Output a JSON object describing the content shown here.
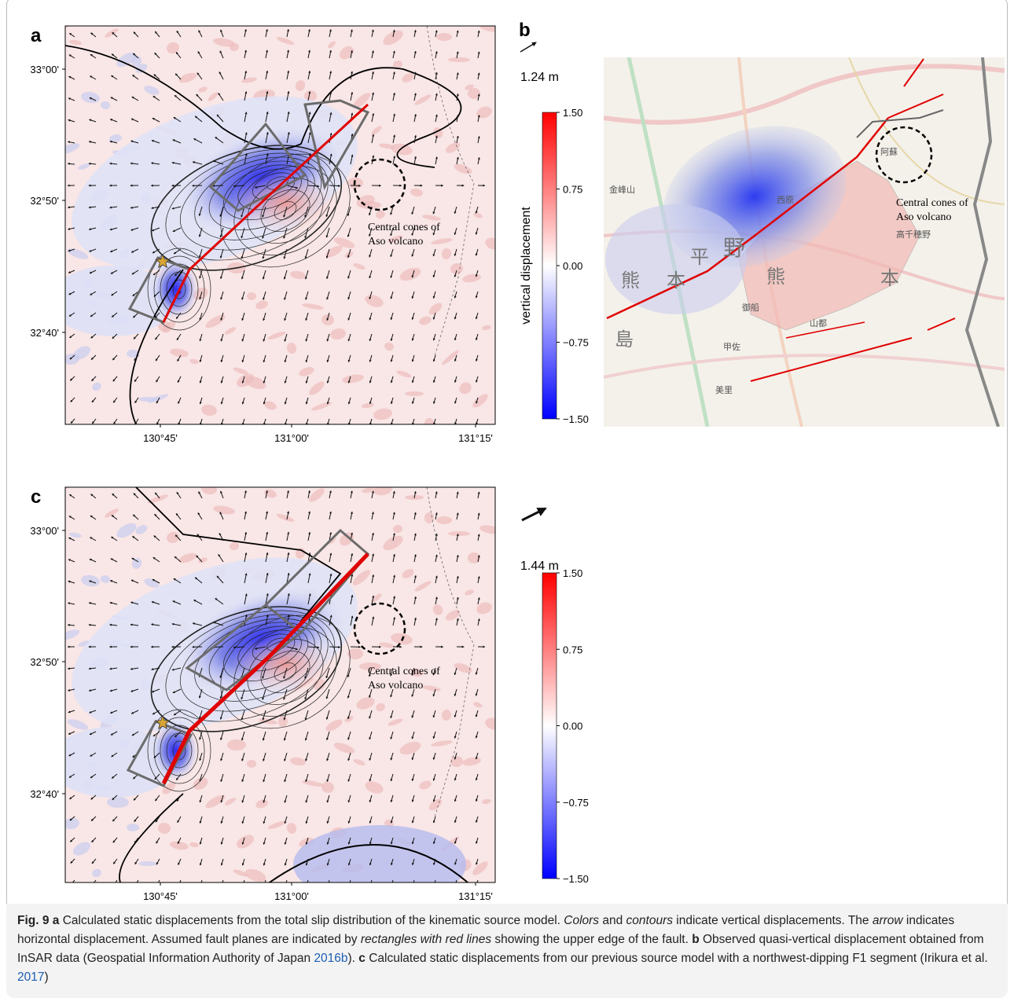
{
  "panels": [
    {
      "label": "a",
      "y_ticks": [
        "33°00'",
        "32°50'",
        "32°40'"
      ],
      "x_ticks": [
        "130°45'",
        "131°00'",
        "131°15'"
      ],
      "annotation": [
        "Central cones of",
        "Aso volcano"
      ],
      "scale_label": "1.24 m",
      "colorbar": {
        "title": "vertical displacement",
        "lim": [
          -1.5,
          1.5
        ],
        "colors": [
          "#0000ff",
          "#ffffff",
          "#ff0000"
        ],
        "ticks": [
          {
            "value": 1.5,
            "label": "1.50"
          },
          {
            "value": 0.75,
            "label": "0.75"
          },
          {
            "value": 0,
            "label": "0.00"
          },
          {
            "value": -0.75,
            "label": "−0.75"
          },
          {
            "value": -1.5,
            "label": "−1.50"
          }
        ]
      }
    },
    {
      "label": "b",
      "annotation": [
        "Central cones of",
        "Aso volcano"
      ],
      "map_labels": [
        "熊",
        "本",
        "平",
        "野",
        "島",
        "熊",
        "本",
        "金峰山",
        "西原",
        "御船",
        "甲佐",
        "美里",
        "山都",
        "高千穂野",
        "阿蘇"
      ]
    },
    {
      "label": "c",
      "y_ticks": [
        "33°00'",
        "32°50'",
        "32°40'"
      ],
      "x_ticks": [
        "130°45'",
        "131°00'",
        "131°15'"
      ],
      "annotation": [
        "Central cones of",
        "Aso volcano"
      ],
      "scale_label": "1.44 m",
      "colorbar": {
        "lim": [
          -1.5,
          1.5
        ],
        "colors": [
          "#0000ff",
          "#ffffff",
          "#ff0000"
        ],
        "ticks": [
          {
            "value": 1.5,
            "label": "1.50"
          },
          {
            "value": 0.75,
            "label": "0.75"
          },
          {
            "value": 0,
            "label": "0.00"
          },
          {
            "value": -0.75,
            "label": "−0.75"
          },
          {
            "value": -1.5,
            "label": "−1.50"
          }
        ]
      }
    }
  ],
  "caption": [
    {
      "text": "Fig. 9",
      "style": "bold"
    },
    {
      "text": " a",
      "style": "bold"
    },
    {
      "text": " Calculated static displacements from the total slip distribution of the kinematic source model. ",
      "style": "normal"
    },
    {
      "text": "Colors",
      "style": "italic"
    },
    {
      "text": " and ",
      "style": "normal"
    },
    {
      "text": "contours",
      "style": "italic"
    },
    {
      "text": " indicate vertical displacements. The ",
      "style": "normal"
    },
    {
      "text": "arrow",
      "style": "italic"
    },
    {
      "text": " indicates horizontal displacement. Assumed fault planes are indicated by ",
      "style": "normal"
    },
    {
      "text": "rectangles with red lines",
      "style": "italic"
    },
    {
      "text": " showing the upper edge of the fault. ",
      "style": "normal"
    },
    {
      "text": "b",
      "style": "bold"
    },
    {
      "text": " Observed quasi-vertical displacement obtained from InSAR data (Geospatial Information Authority of Japan ",
      "style": "normal"
    },
    {
      "text": "2016b",
      "style": "link"
    },
    {
      "text": "). ",
      "style": "normal"
    },
    {
      "text": "c",
      "style": "bold"
    },
    {
      "text": " Calculated static displacements from our previous source model with a northwest-dipping F1 segment (Irikura et al. ",
      "style": "normal"
    },
    {
      "text": "2017",
      "style": "link"
    },
    {
      "text": ")",
      "style": "normal"
    }
  ]
}
